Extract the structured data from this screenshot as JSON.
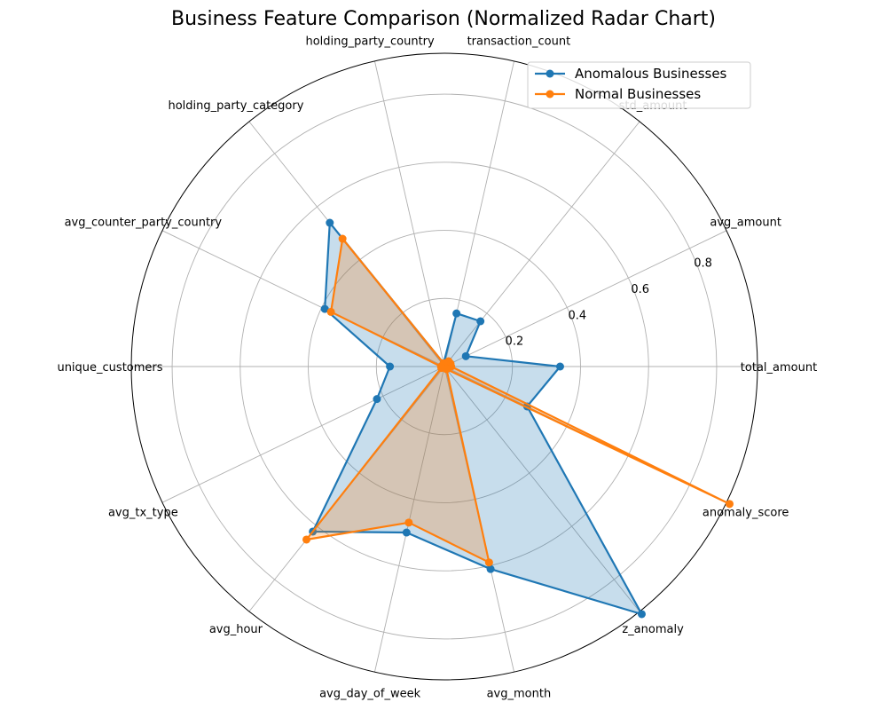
{
  "chart_data": {
    "type": "radar",
    "title": "Business Feature Comparison (Normalized Radar Chart)",
    "categories": [
      "total_amount",
      "avg_amount",
      "std_amount",
      "transaction_count",
      "holding_party_country",
      "holding_party_category",
      "avg_counter_party_country",
      "unique_customers",
      "avg_tx_type",
      "avg_hour",
      "avg_day_of_week",
      "avg_month",
      "z_anomaly",
      "anomaly_score"
    ],
    "rlim": [
      0,
      0.92
    ],
    "r_ticks": [
      "0.2",
      "0.4",
      "0.6",
      "0.8"
    ],
    "r_tick_values": [
      0.2,
      0.4,
      0.6,
      0.8
    ],
    "grid": true,
    "legend_position": "upper right",
    "series": [
      {
        "name": "Anomalous Businesses",
        "color": "#1f77b4",
        "values": [
          0.34,
          0.07,
          0.17,
          0.16,
          0.01,
          0.54,
          0.39,
          0.16,
          0.22,
          0.62,
          0.5,
          0.61,
          0.93,
          0.27
        ]
      },
      {
        "name": "Normal Businesses",
        "color": "#ff7f0e",
        "values": [
          0.02,
          0.02,
          0.02,
          0.01,
          0.01,
          0.48,
          0.37,
          0.01,
          0.01,
          0.65,
          0.47,
          0.59,
          0.01,
          0.93
        ]
      }
    ]
  }
}
